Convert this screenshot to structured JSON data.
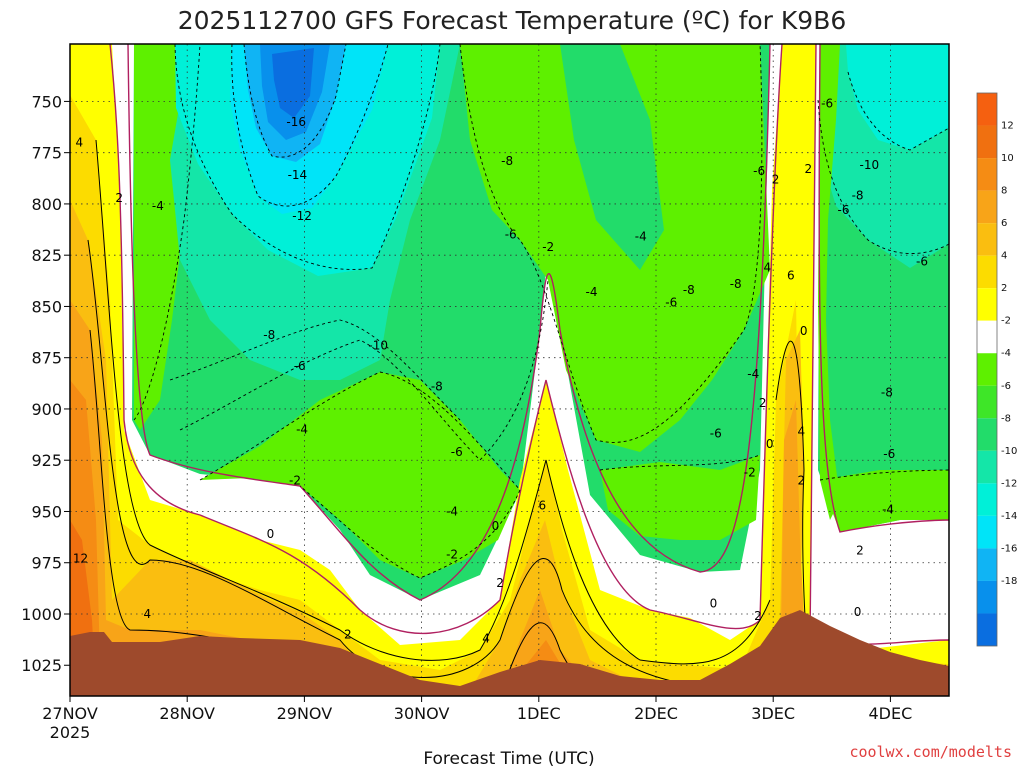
{
  "chart_data": {
    "type": "contour",
    "title": "2025112700 GFS Forecast Temperature (ºC) for K9B6",
    "xlabel": "Forecast Time (UTC)",
    "ylabel": "",
    "credit": "coolwx.com/modelts",
    "x_ticks": [
      "27NOV",
      "28NOV",
      "29NOV",
      "30NOV",
      "1DEC",
      "2DEC",
      "3DEC",
      "4DEC"
    ],
    "x_year": "2025",
    "xlim_days": [
      0,
      7.5
    ],
    "y_ticks": [
      750,
      775,
      800,
      825,
      850,
      875,
      900,
      925,
      950,
      975,
      1000,
      1025
    ],
    "ylim": [
      1040,
      722
    ],
    "colorbar": [
      {
        "label": "12",
        "color": "#f07010"
      },
      {
        "label": "10",
        "color": "#f58c14"
      },
      {
        "label": "8",
        "color": "#f8a418"
      },
      {
        "label": "6",
        "color": "#fabe10"
      },
      {
        "label": "4",
        "color": "#fcdc00"
      },
      {
        "label": "2",
        "color": "#ffff00"
      },
      {
        "label": "-2",
        "color": "#ffffff"
      },
      {
        "label": "-4",
        "color": "#5ef000"
      },
      {
        "label": "-6",
        "color": "#3ee628"
      },
      {
        "label": "-8",
        "color": "#22dc6a"
      },
      {
        "label": "-10",
        "color": "#14e6a8"
      },
      {
        "label": "-12",
        "color": "#00f0d8"
      },
      {
        "label": "-14",
        "color": "#00e4f8"
      },
      {
        "label": "-16",
        "color": "#10b4f4"
      },
      {
        "label": "-18",
        "color": "#0890ec"
      },
      {
        "label": "",
        "color": "#0a6ee0"
      }
    ],
    "colorbar_top": "#f56010",
    "surface_color": "#9e4a2c",
    "zero_line_color": "#b02060",
    "contour_labels": [
      {
        "text": "4",
        "day": 0.08,
        "p": 770
      },
      {
        "text": "2",
        "day": 0.42,
        "p": 797
      },
      {
        "text": "-4",
        "day": 0.75,
        "p": 801
      },
      {
        "text": "-16",
        "day": 1.93,
        "p": 760
      },
      {
        "text": "-14",
        "day": 1.94,
        "p": 786
      },
      {
        "text": "-12",
        "day": 1.98,
        "p": 806
      },
      {
        "text": "-8",
        "day": 3.73,
        "p": 779
      },
      {
        "text": "-6",
        "day": 3.76,
        "p": 815
      },
      {
        "text": "-2",
        "day": 4.08,
        "p": 821
      },
      {
        "text": "-4",
        "day": 4.87,
        "p": 816
      },
      {
        "text": "-4",
        "day": 4.45,
        "p": 843
      },
      {
        "text": "-6",
        "day": 5.13,
        "p": 848
      },
      {
        "text": "-8",
        "day": 5.28,
        "p": 842
      },
      {
        "text": "-8",
        "day": 5.68,
        "p": 839
      },
      {
        "text": "-6",
        "day": 5.88,
        "p": 784
      },
      {
        "text": "2",
        "day": 6.02,
        "p": 788
      },
      {
        "text": "2",
        "day": 6.3,
        "p": 783
      },
      {
        "text": "-6",
        "day": 6.46,
        "p": 751
      },
      {
        "text": "-10",
        "day": 6.82,
        "p": 781
      },
      {
        "text": "-8",
        "day": 6.72,
        "p": 796
      },
      {
        "text": "-6",
        "day": 6.6,
        "p": 803
      },
      {
        "text": "-6",
        "day": 7.27,
        "p": 828
      },
      {
        "text": "-8",
        "day": 1.7,
        "p": 864
      },
      {
        "text": "-6",
        "day": 1.96,
        "p": 879
      },
      {
        "text": "-4",
        "day": 1.98,
        "p": 910
      },
      {
        "text": "-2",
        "day": 1.92,
        "p": 935
      },
      {
        "text": "0",
        "day": 1.71,
        "p": 961
      },
      {
        "text": "-10",
        "day": 2.63,
        "p": 869
      },
      {
        "text": "-8",
        "day": 3.13,
        "p": 889
      },
      {
        "text": "-6",
        "day": 3.3,
        "p": 921
      },
      {
        "text": "-4",
        "day": 3.26,
        "p": 950
      },
      {
        "text": "-2",
        "day": 3.26,
        "p": 971
      },
      {
        "text": "0",
        "day": 3.63,
        "p": 957
      },
      {
        "text": "2",
        "day": 3.67,
        "p": 985
      },
      {
        "text": "4",
        "day": 3.55,
        "p": 1012
      },
      {
        "text": "6",
        "day": 4.03,
        "p": 947
      },
      {
        "text": "2",
        "day": 2.37,
        "p": 1010
      },
      {
        "text": "4",
        "day": 0.66,
        "p": 1000
      },
      {
        "text": "12",
        "day": 0.09,
        "p": 973
      },
      {
        "text": "-6",
        "day": 5.51,
        "p": 912
      },
      {
        "text": "-4",
        "day": 5.83,
        "p": 883
      },
      {
        "text": "-2",
        "day": 5.8,
        "p": 931
      },
      {
        "text": "0",
        "day": 5.49,
        "p": 995
      },
      {
        "text": "2",
        "day": 5.87,
        "p": 1001
      },
      {
        "text": "2",
        "day": 5.91,
        "p": 897
      },
      {
        "text": "0",
        "day": 5.97,
        "p": 917
      },
      {
        "text": "4",
        "day": 5.95,
        "p": 831
      },
      {
        "text": "6",
        "day": 6.15,
        "p": 835
      },
      {
        "text": "0",
        "day": 6.26,
        "p": 862
      },
      {
        "text": "4",
        "day": 6.24,
        "p": 911
      },
      {
        "text": "2",
        "day": 6.24,
        "p": 935
      },
      {
        "text": "-8",
        "day": 6.97,
        "p": 892
      },
      {
        "text": "-6",
        "day": 6.99,
        "p": 922
      },
      {
        "text": "-4",
        "day": 6.98,
        "p": 949
      },
      {
        "text": "2",
        "day": 6.74,
        "p": 969
      },
      {
        "text": "0",
        "day": 6.72,
        "p": 999
      }
    ]
  }
}
